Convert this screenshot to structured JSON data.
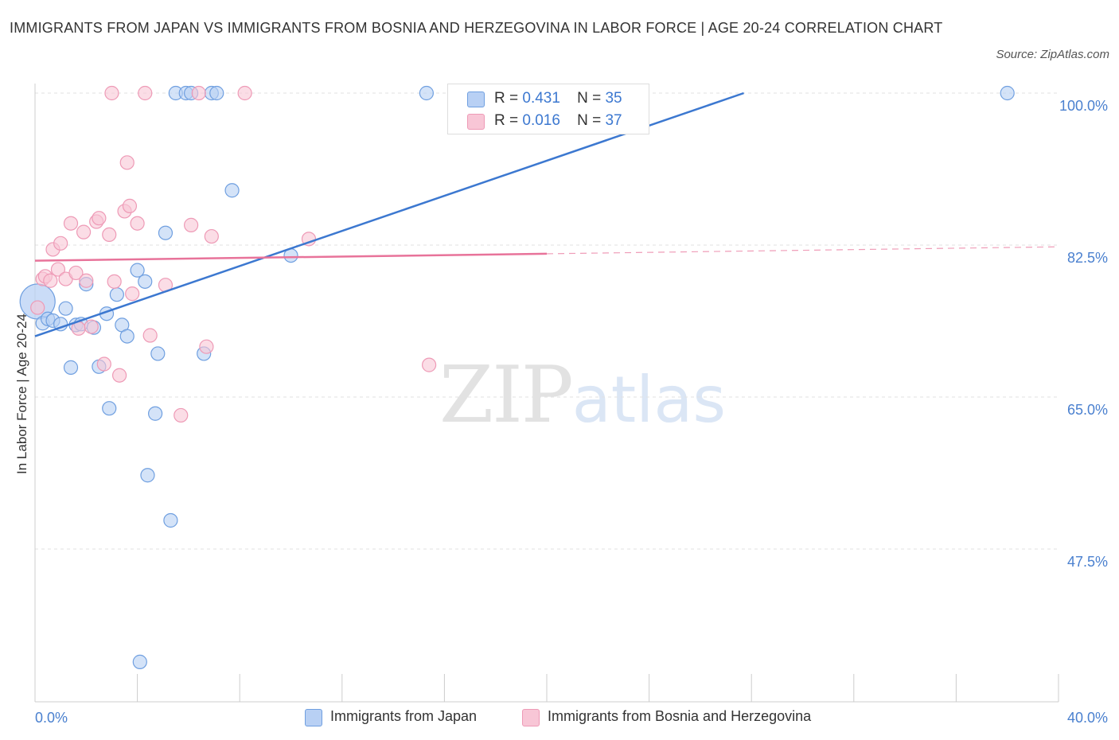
{
  "title": "IMMIGRANTS FROM JAPAN VS IMMIGRANTS FROM BOSNIA AND HERZEGOVINA IN LABOR FORCE | AGE 20-24 CORRELATION CHART",
  "source": "Source: ZipAtlas.com",
  "watermark": {
    "zip": "ZIP",
    "atlas": "atlas"
  },
  "legend": {
    "japan": {
      "r_label": "R =",
      "r_value": "0.431",
      "n_label": "N =",
      "n_value": "35"
    },
    "bosnia": {
      "r_label": "R =",
      "r_value": "0.016",
      "n_label": "N =",
      "n_value": "37"
    }
  },
  "colors": {
    "japan_fill": "#b8d0f4",
    "japan_stroke": "#6f9fe0",
    "japan_line": "#3c78d0",
    "bosnia_fill": "#f8c6d6",
    "bosnia_stroke": "#ee9ab6",
    "bosnia_line": "#e8739a",
    "tick_label": "#4a80cf",
    "grid": "#e2e2e2"
  },
  "chart_data": {
    "type": "scatter",
    "title": "IMMIGRANTS FROM JAPAN VS IMMIGRANTS FROM BOSNIA AND HERZEGOVINA IN LABOR FORCE | AGE 20-24 CORRELATION CHART",
    "xlabel": "",
    "ylabel": "In Labor Force | Age 20-24",
    "xlim": [
      0,
      40
    ],
    "ylim": [
      32,
      102
    ],
    "x_tick_labels": [
      "0.0%",
      "40.0%"
    ],
    "y_ticks": [
      47.5,
      65.0,
      82.5,
      100.0
    ],
    "y_tick_labels": [
      "47.5%",
      "65.0%",
      "82.5%",
      "100.0%"
    ],
    "grid": "horizontal dashed",
    "legend_position": "top-center",
    "series": [
      {
        "name": "Immigrants from Japan",
        "color": "#6f9fe0",
        "points": [
          [
            0.1,
            76.0
          ],
          [
            0.3,
            73.5
          ],
          [
            0.5,
            74.0
          ],
          [
            0.7,
            73.8
          ],
          [
            1.0,
            73.4
          ],
          [
            1.2,
            75.2
          ],
          [
            1.4,
            68.4
          ],
          [
            1.6,
            73.3
          ],
          [
            1.8,
            73.4
          ],
          [
            2.0,
            78.0
          ],
          [
            2.3,
            73.0
          ],
          [
            2.5,
            68.5
          ],
          [
            2.8,
            74.6
          ],
          [
            2.9,
            63.7
          ],
          [
            3.2,
            76.8
          ],
          [
            3.4,
            73.3
          ],
          [
            3.6,
            72.0
          ],
          [
            4.0,
            79.6
          ],
          [
            4.3,
            78.3
          ],
          [
            4.4,
            56.0
          ],
          [
            4.7,
            63.1
          ],
          [
            4.8,
            70.0
          ],
          [
            5.1,
            83.9
          ],
          [
            5.3,
            50.8
          ],
          [
            5.5,
            100.0
          ],
          [
            5.9,
            100.0
          ],
          [
            6.1,
            100.0
          ],
          [
            6.6,
            70.0
          ],
          [
            6.9,
            100.0
          ],
          [
            7.1,
            100.0
          ],
          [
            7.7,
            88.8
          ],
          [
            10.0,
            81.3
          ],
          [
            15.3,
            100.0
          ],
          [
            38.0,
            100.0
          ],
          [
            4.1,
            34.5
          ]
        ],
        "trendline": {
          "x": [
            0,
            27.7
          ],
          "y": [
            72.0,
            100.0
          ]
        }
      },
      {
        "name": "Immigrants from Bosnia and Herzegovina",
        "color": "#ee9ab6",
        "points": [
          [
            0.1,
            75.3
          ],
          [
            0.3,
            78.6
          ],
          [
            0.4,
            78.9
          ],
          [
            0.6,
            78.4
          ],
          [
            0.7,
            82.0
          ],
          [
            0.9,
            79.7
          ],
          [
            1.0,
            82.7
          ],
          [
            1.2,
            78.6
          ],
          [
            1.4,
            85.0
          ],
          [
            1.6,
            79.3
          ],
          [
            1.7,
            72.9
          ],
          [
            1.9,
            84.0
          ],
          [
            2.0,
            78.4
          ],
          [
            2.2,
            73.1
          ],
          [
            2.4,
            85.2
          ],
          [
            2.5,
            85.6
          ],
          [
            2.7,
            68.8
          ],
          [
            2.9,
            83.7
          ],
          [
            3.1,
            78.3
          ],
          [
            3.3,
            67.5
          ],
          [
            3.5,
            86.4
          ],
          [
            3.6,
            92.0
          ],
          [
            3.7,
            87.0
          ],
          [
            3.8,
            76.9
          ],
          [
            4.0,
            85.0
          ],
          [
            4.3,
            100.0
          ],
          [
            4.5,
            72.1
          ],
          [
            5.1,
            77.9
          ],
          [
            5.7,
            62.9
          ],
          [
            6.1,
            84.8
          ],
          [
            6.4,
            100.0
          ],
          [
            6.7,
            70.8
          ],
          [
            6.9,
            83.5
          ],
          [
            8.2,
            100.0
          ],
          [
            10.7,
            83.2
          ],
          [
            15.4,
            68.7
          ],
          [
            3.0,
            100.0
          ]
        ],
        "trendline": {
          "x": [
            0,
            20
          ],
          "y": [
            80.7,
            81.5
          ]
        },
        "trendline_extension": {
          "x": [
            20,
            40
          ],
          "y": [
            81.5,
            82.3
          ]
        }
      }
    ]
  },
  "bottom_legend": {
    "japan_label": "Immigrants from Japan",
    "bosnia_label": "Immigrants from Bosnia and Herzegovina"
  }
}
